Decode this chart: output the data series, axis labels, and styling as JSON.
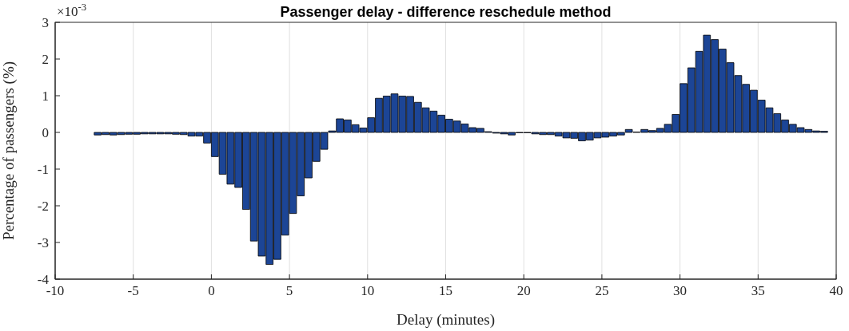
{
  "chart_data": {
    "type": "histogram",
    "title": "Passenger delay - difference reschedule method",
    "xlabel": "Delay (minutes)",
    "ylabel": "Percentage of passengers (%)",
    "annotations": [
      "×10$^{-3}$"
    ],
    "bins": [
      -7.5,
      -7,
      -6.5,
      -6,
      -5.5,
      -5,
      -4.5,
      -4,
      -3.5,
      -3,
      -2.5,
      -2,
      -1.5,
      -1,
      -0.5,
      0,
      0.5,
      1,
      1.5,
      2,
      2.5,
      3,
      3.5,
      4,
      4.5,
      5,
      5.5,
      6,
      6.5,
      7,
      7.5,
      8,
      8.5,
      9,
      9.5,
      10,
      10.5,
      11,
      11.5,
      12,
      12.5,
      13,
      13.5,
      14,
      14.5,
      15,
      15.5,
      16,
      16.5,
      17,
      17.5,
      18,
      18.5,
      19,
      19.5,
      20,
      20.5,
      21,
      21.5,
      22,
      22.5,
      23,
      23.5,
      24,
      24.5,
      25,
      25.5,
      26,
      26.5,
      27,
      27.5,
      28,
      28.5,
      29,
      29.5,
      30,
      30.5,
      31,
      31.5,
      32,
      32.5,
      33,
      33.5,
      34,
      34.5,
      35,
      35.5,
      36,
      36.5,
      37,
      37.5,
      38,
      38.5,
      39,
      39.5
    ],
    "values": [
      -0.07,
      -0.06,
      -0.07,
      -0.06,
      -0.05,
      -0.05,
      -0.04,
      -0.04,
      -0.04,
      -0.04,
      -0.05,
      -0.06,
      -0.1,
      -0.1,
      -0.29,
      -0.66,
      -1.14,
      -1.41,
      -1.5,
      -2.1,
      -2.96,
      -3.37,
      -3.6,
      -3.46,
      -2.8,
      -2.21,
      -1.73,
      -1.24,
      -0.79,
      -0.46,
      0.04,
      0.37,
      0.34,
      0.21,
      0.12,
      0.4,
      0.93,
      0.99,
      1.05,
      0.99,
      0.98,
      0.82,
      0.67,
      0.58,
      0.47,
      0.36,
      0.31,
      0.23,
      0.13,
      0.11,
      0.02,
      -0.02,
      -0.04,
      -0.07,
      -0.01,
      -0.01,
      -0.04,
      -0.06,
      -0.06,
      -0.1,
      -0.15,
      -0.16,
      -0.23,
      -0.21,
      -0.15,
      -0.13,
      -0.1,
      -0.07,
      0.08,
      0.01,
      0.08,
      0.05,
      0.11,
      0.22,
      0.49,
      1.33,
      1.76,
      2.21,
      2.65,
      2.53,
      2.27,
      1.9,
      1.55,
      1.31,
      1.15,
      0.88,
      0.67,
      0.51,
      0.34,
      0.22,
      0.13,
      0.08,
      0.04,
      0.03
    ],
    "color": "#1c4596",
    "xlim": [
      -10,
      40
    ],
    "xticks": [
      -10,
      -5,
      0,
      5,
      10,
      15,
      20,
      25,
      30,
      35,
      40
    ],
    "ylim": [
      -4,
      3
    ],
    "yticks": [
      -4,
      -3,
      -2,
      -1,
      0,
      1,
      2,
      3
    ],
    "grid": "x"
  }
}
